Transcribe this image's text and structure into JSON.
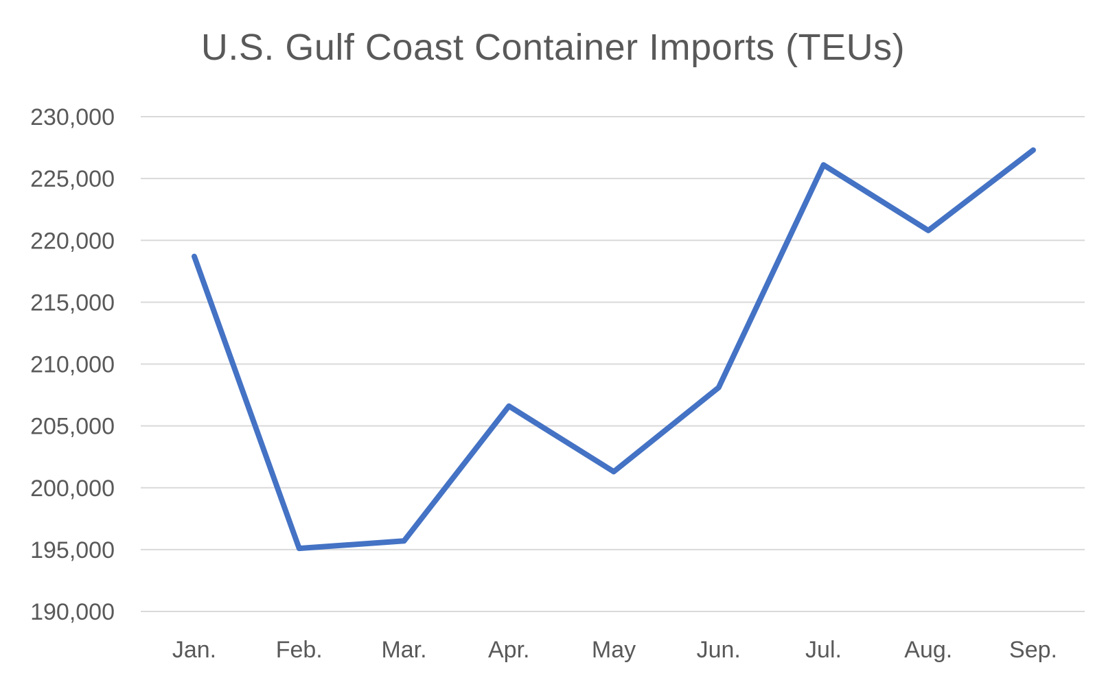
{
  "chart_data": {
    "type": "line",
    "title": "U.S. Gulf Coast Container Imports (TEUs)",
    "xlabel": "",
    "ylabel": "",
    "categories": [
      "Jan.",
      "Feb.",
      "Mar.",
      "Apr.",
      "May",
      "Jun.",
      "Jul.",
      "Aug.",
      "Sep."
    ],
    "series": [
      {
        "values": [
          218700,
          195100,
          195700,
          206600,
          201300,
          208100,
          226100,
          220800,
          227300
        ],
        "color": "#4472c4"
      }
    ],
    "ylim": [
      190000,
      230000
    ],
    "yticks": [
      190000,
      195000,
      200000,
      205000,
      210000,
      215000,
      220000,
      225000,
      230000
    ],
    "ytick_labels": [
      "190,000",
      "195,000",
      "200,000",
      "205,000",
      "210,000",
      "215,000",
      "220,000",
      "225,000",
      "230,000"
    ],
    "grid": true,
    "legend": "none",
    "grid_color": "#d9d9d9",
    "text_color": "#595959"
  }
}
